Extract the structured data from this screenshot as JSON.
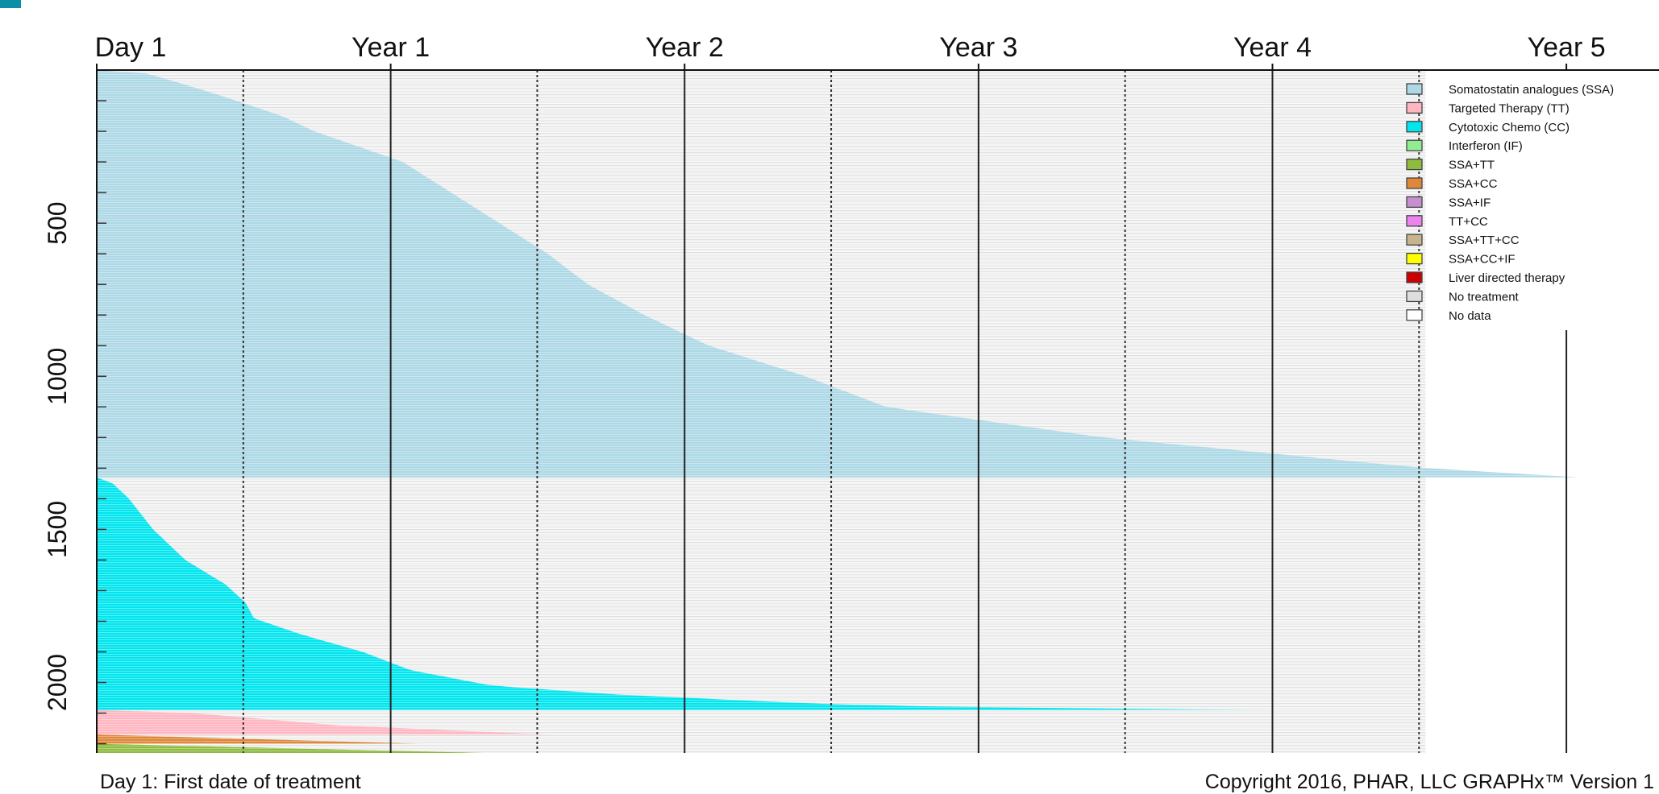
{
  "chart_data": {
    "type": "timeline",
    "x_tick_labels": [
      "Day 1",
      "Year 1",
      "Year 2",
      "Year 3",
      "Year 4",
      "Year 5"
    ],
    "x_ticks_days": [
      0,
      365,
      730,
      1095,
      1460,
      1825
    ],
    "xlim_days": [
      0,
      1940
    ],
    "y_tick_labels": [
      "500",
      "1000",
      "1500",
      "2000"
    ],
    "y_ticks": [
      500,
      1000,
      1500,
      2000
    ],
    "ylim": [
      0,
      2230
    ],
    "grid": {
      "solid_lines_days": [
        365,
        730,
        1095,
        1460,
        1825
      ],
      "dotted_lines_days": [
        182,
        547,
        912,
        1277,
        1642
      ]
    },
    "legend": {
      "placement": "top-right",
      "items": [
        {
          "label": "Somatostatin analogues (SSA)",
          "color": "#add8e6"
        },
        {
          "label": "Targeted Therapy (TT)",
          "color": "#ffb6c1"
        },
        {
          "label": "Cytotoxic Chemo (CC)",
          "color": "#00e5ee"
        },
        {
          "label": "Interferon (IF)",
          "color": "#90ee90"
        },
        {
          "label": "SSA+TT",
          "color": "#8fbc3f"
        },
        {
          "label": "SSA+CC",
          "color": "#e0873a"
        },
        {
          "label": "SSA+IF",
          "color": "#c58fd0"
        },
        {
          "label": "TT+CC",
          "color": "#ee82ee"
        },
        {
          "label": "SSA+TT+CC",
          "color": "#c8b48c"
        },
        {
          "label": "SSA+CC+IF",
          "color": "#ffff00"
        },
        {
          "label": "Liver directed therapy",
          "color": "#cc0000"
        },
        {
          "label": "No treatment",
          "color": "#dedede"
        },
        {
          "label": "No data",
          "color": "#ffffff"
        }
      ]
    },
    "bands": [
      {
        "name": "Somatostatin analogues (SSA)",
        "color": "#add8e6",
        "patient_range": [
          0,
          1330
        ],
        "duration_curve": [
          [
            0,
            0
          ],
          [
            10,
            60
          ],
          [
            40,
            100
          ],
          [
            80,
            150
          ],
          [
            150,
            230
          ],
          [
            200,
            270
          ],
          [
            300,
            380
          ],
          [
            400,
            440
          ],
          [
            500,
            500
          ],
          [
            600,
            560
          ],
          [
            700,
            610
          ],
          [
            800,
            680
          ],
          [
            900,
            760
          ],
          [
            1000,
            880
          ],
          [
            1100,
            980
          ],
          [
            1200,
            1250
          ],
          [
            1250,
            1450
          ],
          [
            1300,
            1650
          ],
          [
            1330,
            1840
          ]
        ]
      },
      {
        "name": "Cytotoxic Chemo (CC)",
        "color": "#00e5ee",
        "patient_range": [
          1330,
          2090
        ],
        "duration_curve": [
          [
            1330,
            0
          ],
          [
            1350,
            20
          ],
          [
            1400,
            40
          ],
          [
            1500,
            70
          ],
          [
            1600,
            110
          ],
          [
            1680,
            160
          ],
          [
            1740,
            185
          ],
          [
            1790,
            195
          ],
          [
            1840,
            250
          ],
          [
            1900,
            330
          ],
          [
            1960,
            390
          ],
          [
            2010,
            490
          ],
          [
            2040,
            650
          ],
          [
            2070,
            900
          ],
          [
            2080,
            1060
          ],
          [
            2090,
            1450
          ]
        ]
      },
      {
        "name": "Targeted Therapy (TT)",
        "color": "#ffb6c1",
        "patient_range": [
          2090,
          2170
        ],
        "duration_curve": [
          [
            2090,
            0
          ],
          [
            2100,
            120
          ],
          [
            2140,
            300
          ],
          [
            2170,
            560
          ]
        ]
      },
      {
        "name": "SSA+CC",
        "color": "#e0873a",
        "patient_range": [
          2170,
          2200
        ],
        "duration_curve": [
          [
            2170,
            0
          ],
          [
            2200,
            400
          ]
        ]
      },
      {
        "name": "SSA+TT",
        "color": "#8fbc3f",
        "patient_range": [
          2200,
          2230
        ],
        "duration_curve": [
          [
            2200,
            0
          ],
          [
            2230,
            480
          ]
        ]
      }
    ]
  },
  "footer": {
    "note": "Day 1: First date of treatment",
    "copyright": "Copyright 2016, PHAR, LLC GRAPHx™ Version 1"
  }
}
